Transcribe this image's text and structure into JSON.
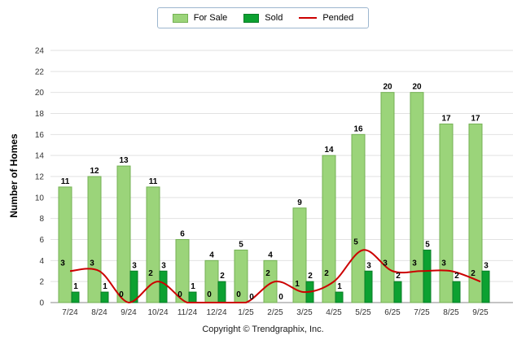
{
  "legend": {
    "for_sale_label": "For Sale",
    "sold_label": "Sold",
    "pended_label": "Pended"
  },
  "footer": {
    "copyright": "Copyright © Trendgraphix, Inc."
  },
  "colors": {
    "for_sale": "#9bd47a",
    "for_sale_border": "#74b154",
    "sold": "#0ca131",
    "sold_border": "#0a7d27",
    "pended": "#cc0000",
    "grid": "#e2e2e2",
    "axis": "#8a8a8a",
    "tick_text": "#333333",
    "label_text": "#000000"
  },
  "chart_data": {
    "type": "bar",
    "title": "",
    "xlabel": "",
    "ylabel": "Number of Homes",
    "ylim": [
      0,
      24
    ],
    "ytick_step": 2,
    "grid": true,
    "legend_position": "top",
    "categories": [
      "7/24",
      "8/24",
      "9/24",
      "10/24",
      "11/24",
      "12/24",
      "1/25",
      "2/25",
      "3/25",
      "4/25",
      "5/25",
      "6/25",
      "7/25",
      "8/25",
      "9/25"
    ],
    "series": [
      {
        "name": "For Sale",
        "type": "bar",
        "color_key": "for_sale",
        "values": [
          11,
          12,
          13,
          11,
          6,
          4,
          5,
          4,
          9,
          14,
          16,
          20,
          20,
          17,
          17
        ]
      },
      {
        "name": "Sold",
        "type": "bar",
        "color_key": "sold",
        "values": [
          1,
          1,
          3,
          3,
          1,
          2,
          0,
          0,
          2,
          1,
          3,
          2,
          5,
          2,
          3
        ]
      },
      {
        "name": "Pended",
        "type": "line",
        "color_key": "pended",
        "values": [
          3,
          3,
          0,
          2,
          0,
          0,
          0,
          2,
          1,
          2,
          5,
          3,
          3,
          3,
          2
        ]
      }
    ]
  }
}
